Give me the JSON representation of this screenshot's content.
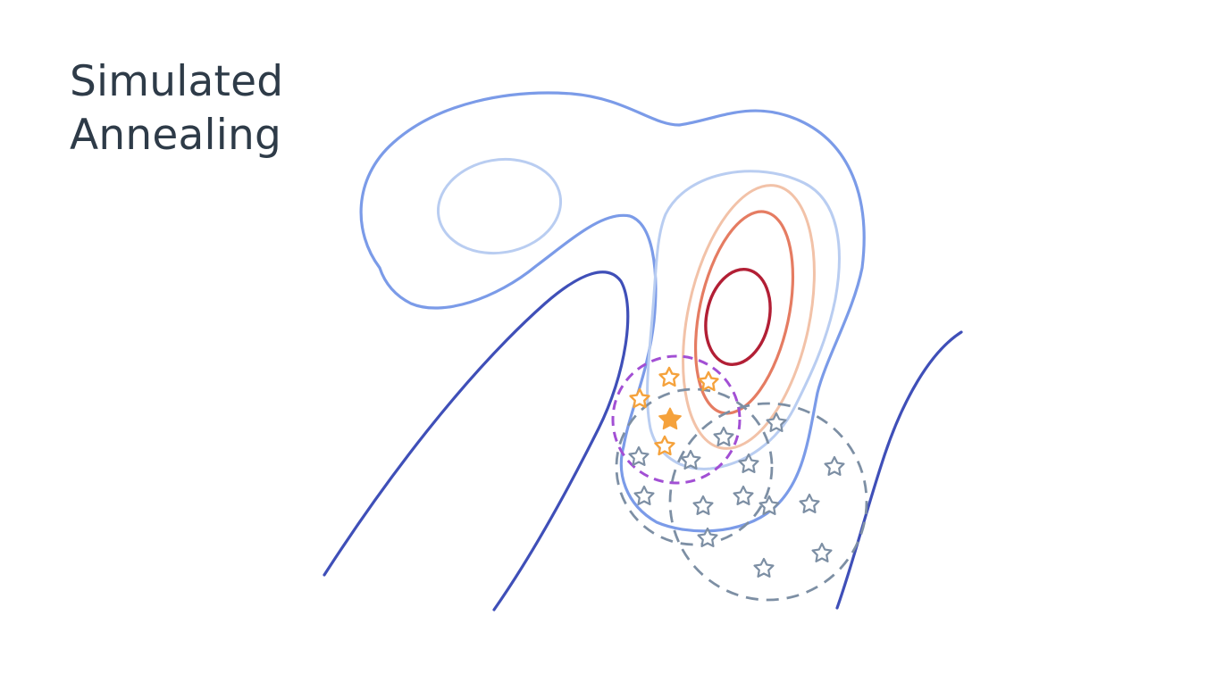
{
  "title": {
    "line1": "Simulated",
    "line2": "Annealing"
  },
  "colors": {
    "title_text": "#2e3b48",
    "contour_deep_blue": "#3f4fb8",
    "contour_blue": "#7b9be8",
    "contour_light_blue": "#b9cdf1",
    "contour_peach": "#f2c2a8",
    "contour_orange": "#e57c62",
    "contour_crimson": "#b21f35",
    "orange_star": "#f5a23c",
    "grey_star": "#7d8fa4",
    "purple_circle": "#a24fd4",
    "grey_circle": "#7d8fa4"
  },
  "icons": {
    "current_best": "filled-star-icon",
    "candidate": "outline-star-icon"
  }
}
